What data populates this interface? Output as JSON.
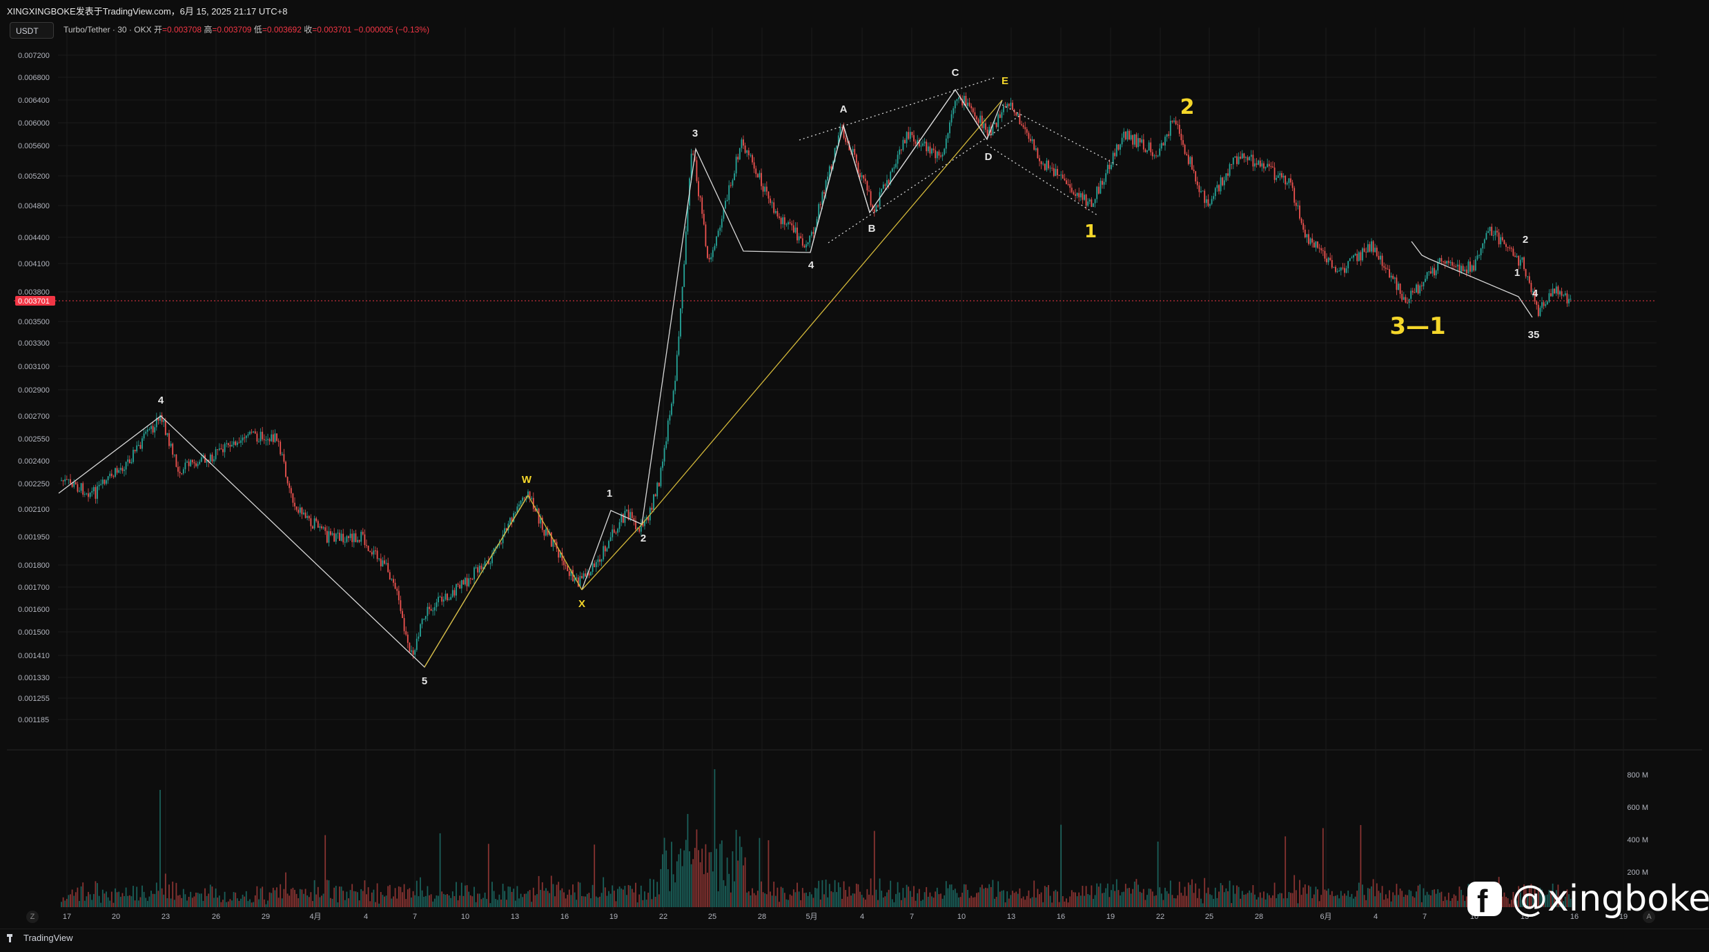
{
  "header": {
    "title": "XINGXINGBOKE发表于TradingView.com，6月 15, 2025 21:17 UTC+8",
    "unit_button": "USDT",
    "symbol": "Turbo/Tether · 30 · OKX",
    "open_label": "开",
    "open": "=0.003708",
    "high_label": "高",
    "high": "=0.003709",
    "low_label": "低",
    "low": "=0.003692",
    "close_label": "收",
    "close": "=0.003701",
    "change": "−0.000005 (−0.13%)"
  },
  "price_axis": {
    "labels": [
      "0.007200",
      "0.006800",
      "0.006400",
      "0.006000",
      "0.005600",
      "0.005200",
      "0.004800",
      "0.004400",
      "0.004100",
      "0.003800",
      "0.003500",
      "0.003300",
      "0.003100",
      "0.002900",
      "0.002700",
      "0.002550",
      "0.002400",
      "0.002250",
      "0.002100",
      "0.001950",
      "0.001800",
      "0.001700",
      "0.001600",
      "0.001500",
      "0.001410",
      "0.001330",
      "0.001255",
      "0.001185"
    ],
    "current_price": "0.003701",
    "scale": "log"
  },
  "volume_axis": {
    "labels": [
      "800 M",
      "600 M",
      "400 M",
      "200 M"
    ]
  },
  "time_axis": {
    "labels": [
      "17",
      "20",
      "23",
      "26",
      "29",
      "4月",
      "4",
      "7",
      "10",
      "13",
      "16",
      "19",
      "22",
      "25",
      "28",
      "5月",
      "4",
      "7",
      "10",
      "13",
      "16",
      "19",
      "22",
      "25",
      "28",
      "6月",
      "4",
      "7",
      "10",
      "13",
      "16",
      "19"
    ]
  },
  "wave_labels": {
    "white": [
      "4",
      "5",
      "1",
      "2",
      "3",
      "4",
      "A",
      "B",
      "C",
      "E",
      "D",
      "2",
      "1",
      "4",
      "35"
    ],
    "yellow": [
      "W",
      "X",
      "1",
      "2",
      "3—1"
    ]
  },
  "chart_data": {
    "type": "candlestick",
    "title": "Turbo/Tether · 30 · OKX",
    "y_scale": "log",
    "ylim": [
      0.001185,
      0.0072
    ],
    "x_start": "3月17",
    "x_end": "6月19",
    "path_points": [
      {
        "date": "3月17",
        "price": 0.00227
      },
      {
        "date": "3月19",
        "price": 0.00219
      },
      {
        "date": "3月21",
        "price": 0.0024
      },
      {
        "date": "3月23",
        "price": 0.0027
      },
      {
        "date": "3月24",
        "price": 0.00234
      },
      {
        "date": "3月26",
        "price": 0.00242
      },
      {
        "date": "3月28",
        "price": 0.00258
      },
      {
        "date": "3月30",
        "price": 0.00255
      },
      {
        "date": "3月31",
        "price": 0.00213
      },
      {
        "date": "4月2",
        "price": 0.00195
      },
      {
        "date": "4月4",
        "price": 0.00195
      },
      {
        "date": "4月6",
        "price": 0.00174
      },
      {
        "date": "4月7",
        "price": 0.0014
      },
      {
        "date": "4月8",
        "price": 0.00159
      },
      {
        "date": "4月10",
        "price": 0.0017
      },
      {
        "date": "4月12",
        "price": 0.00185
      },
      {
        "date": "4月14",
        "price": 0.00221
      },
      {
        "date": "4月15",
        "price": 0.002
      },
      {
        "date": "4月17",
        "price": 0.00172
      },
      {
        "date": "4月18",
        "price": 0.00178
      },
      {
        "date": "4月20",
        "price": 0.00208
      },
      {
        "date": "4月21",
        "price": 0.00198
      },
      {
        "date": "4月22",
        "price": 0.00225
      },
      {
        "date": "4月23",
        "price": 0.003
      },
      {
        "date": "4月24",
        "price": 0.00558
      },
      {
        "date": "4月25",
        "price": 0.0041
      },
      {
        "date": "4月27",
        "price": 0.0057
      },
      {
        "date": "4月29",
        "price": 0.0047
      },
      {
        "date": "5月1",
        "price": 0.0043
      },
      {
        "date": "5月3",
        "price": 0.00593
      },
      {
        "date": "5月5",
        "price": 0.00475
      },
      {
        "date": "5月7",
        "price": 0.0058
      },
      {
        "date": "5月9",
        "price": 0.0054
      },
      {
        "date": "5月10",
        "price": 0.0065
      },
      {
        "date": "5月12",
        "price": 0.0058
      },
      {
        "date": "5月13",
        "price": 0.0064
      },
      {
        "date": "5月15",
        "price": 0.0054
      },
      {
        "date": "5月18",
        "price": 0.0048
      },
      {
        "date": "5月20",
        "price": 0.0058
      },
      {
        "date": "5月22",
        "price": 0.0055
      },
      {
        "date": "5月23",
        "price": 0.00605
      },
      {
        "date": "5月25",
        "price": 0.0048
      },
      {
        "date": "5月27",
        "price": 0.0055
      },
      {
        "date": "5月30",
        "price": 0.0051
      },
      {
        "date": "5月31",
        "price": 0.0044
      },
      {
        "date": "6月2",
        "price": 0.004
      },
      {
        "date": "6月4",
        "price": 0.0043
      },
      {
        "date": "6月6",
        "price": 0.0037
      },
      {
        "date": "6月8",
        "price": 0.0041
      },
      {
        "date": "6月10",
        "price": 0.00405
      },
      {
        "date": "6月11",
        "price": 0.0045
      },
      {
        "date": "6月13",
        "price": 0.0041
      },
      {
        "date": "6月14",
        "price": 0.0036
      },
      {
        "date": "6月15",
        "price": 0.00382
      },
      {
        "date": "6月16",
        "price": 0.0037
      }
    ],
    "volume_series": "per-candle volume, peaks ~860 M around 4月24"
  },
  "colors": {
    "background": "#0d0d0d",
    "up": "#26a69a",
    "down": "#ef5350",
    "price_tag": "#f23645",
    "annotation_white": "#e6e6e6",
    "annotation_yellow": "#f5d72a",
    "wave_yellow_line": "#d4b93a"
  },
  "watermark": {
    "icon": "facebook-icon",
    "handle": "@xingboke"
  },
  "footer": {
    "brand": "TradingView"
  },
  "corner_buttons": {
    "left": "Z",
    "right": "A"
  }
}
